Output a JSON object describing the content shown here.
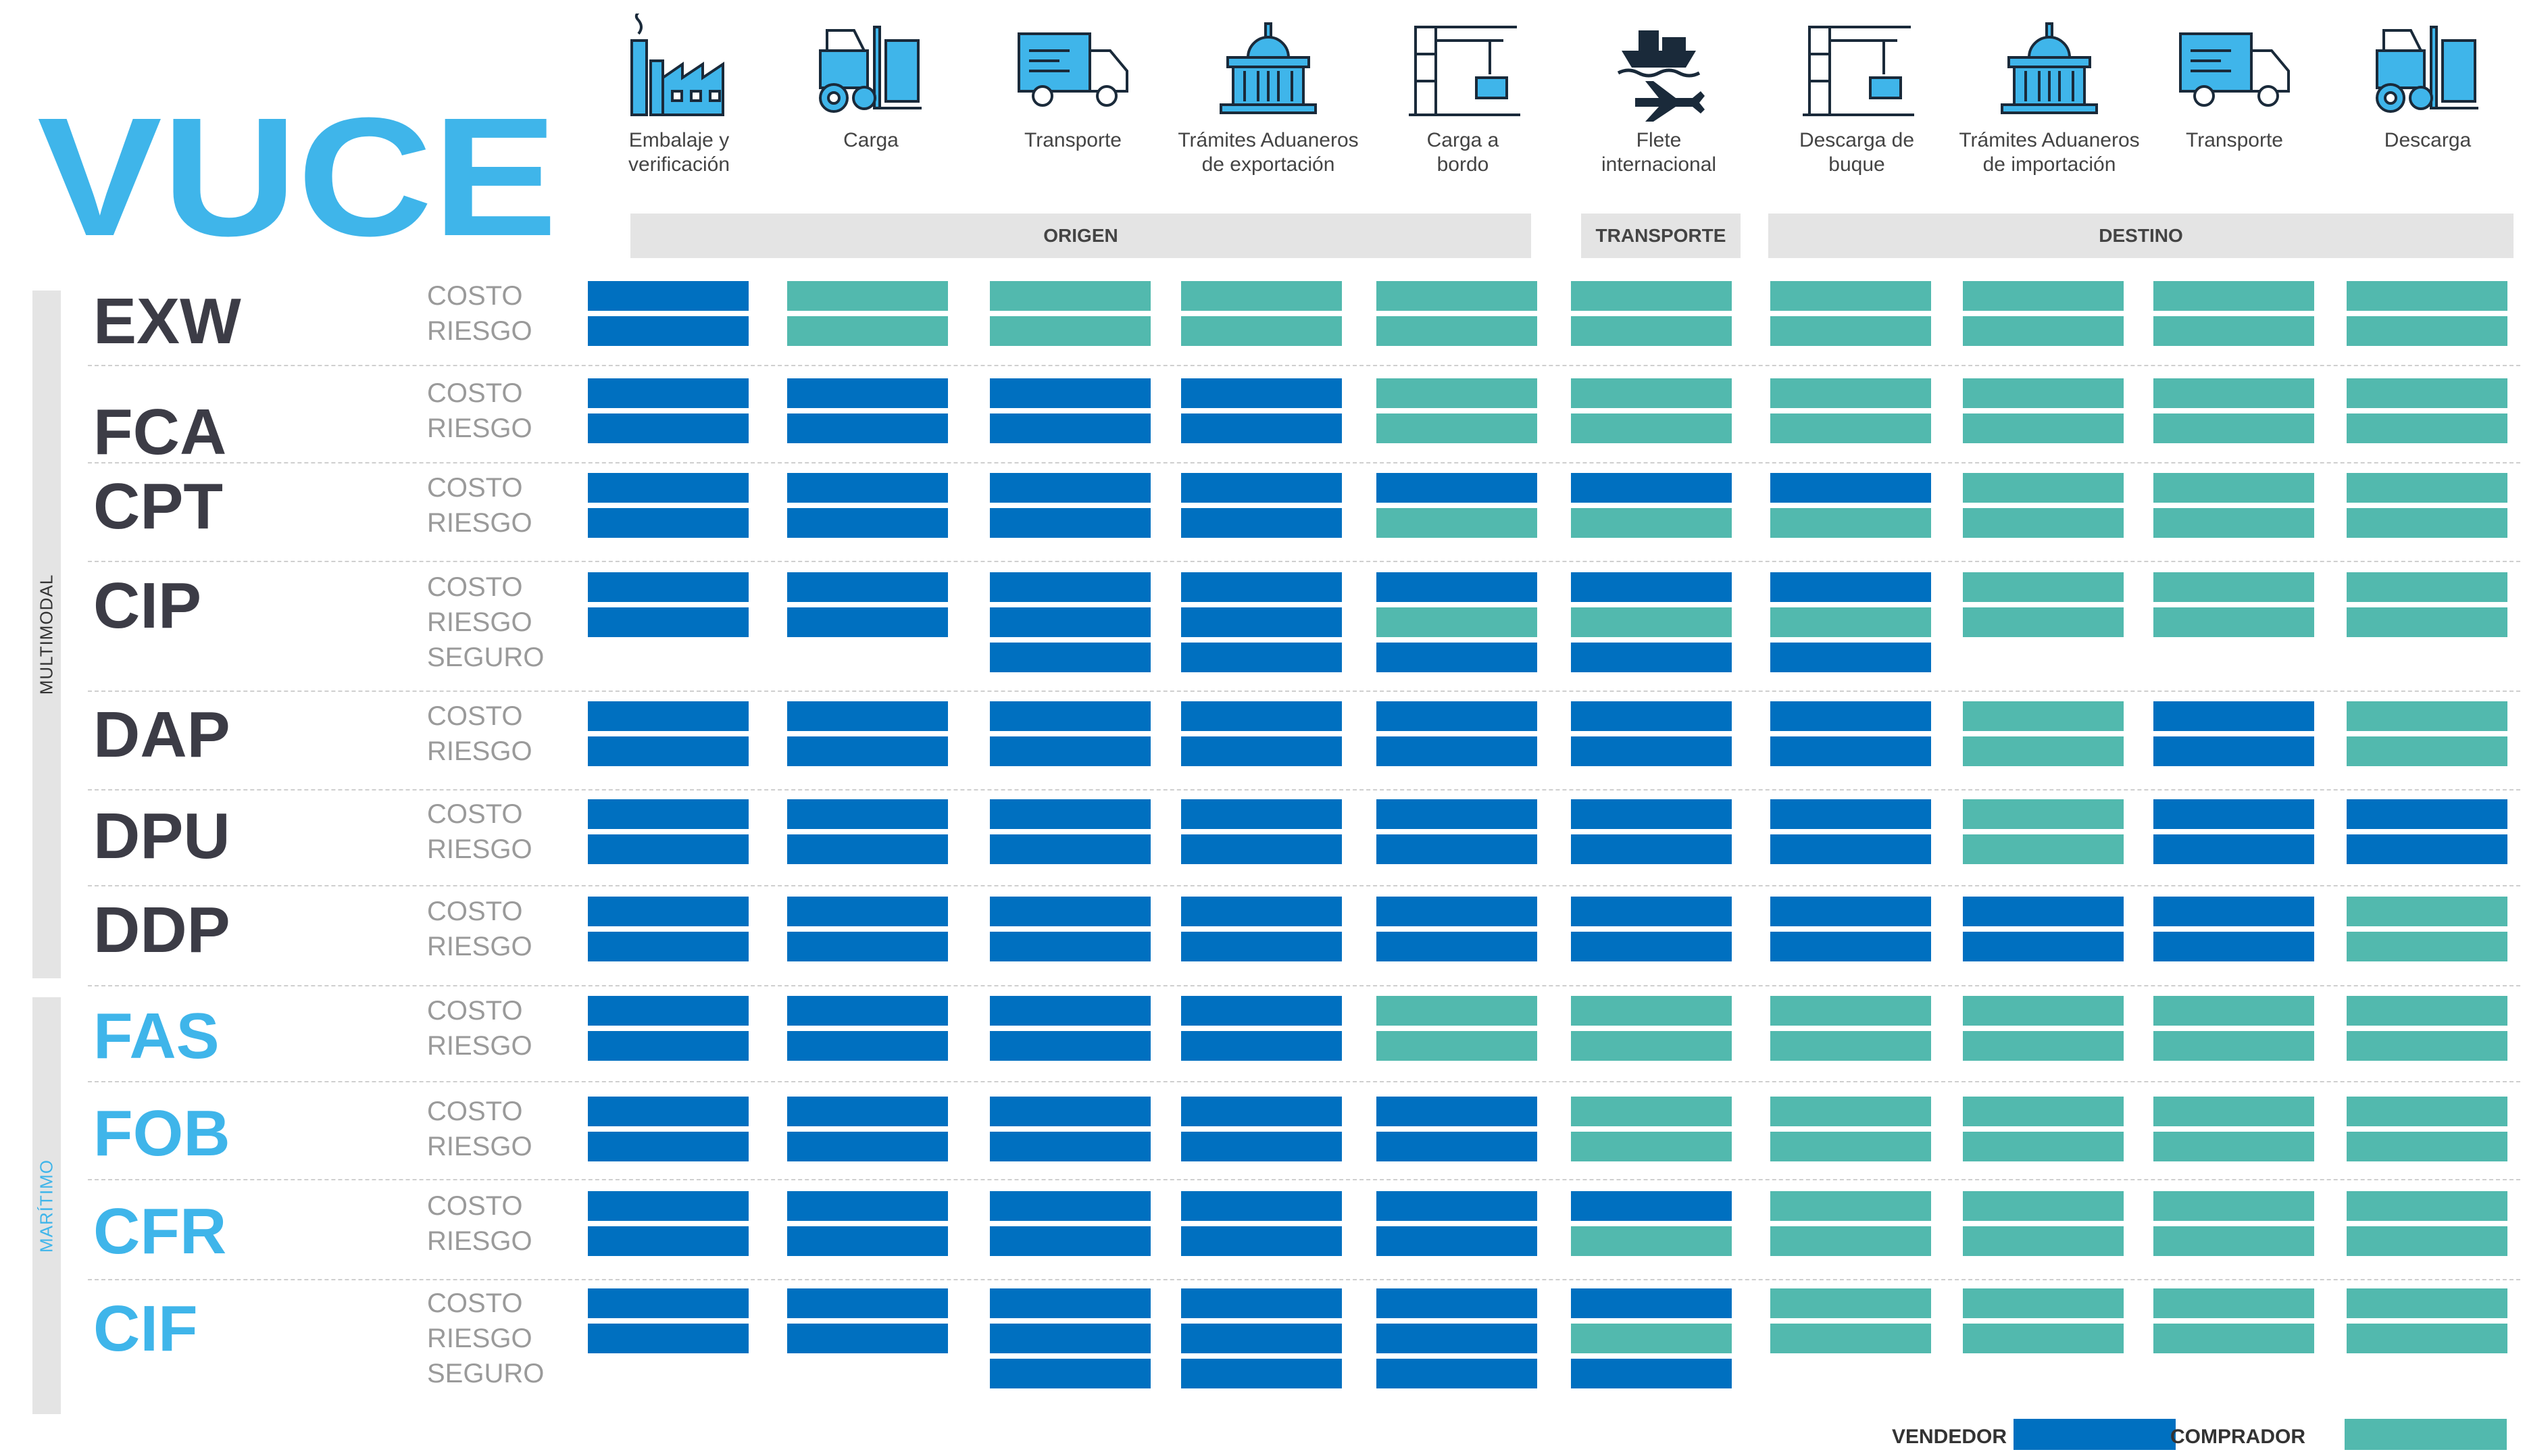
{
  "logo_text": "VUCE",
  "colors": {
    "vendedor": "#0070c0",
    "comprador": "#52b9ae",
    "logo": "#3fb5ea"
  },
  "steps": [
    {
      "icon": "factory-icon",
      "label": "Embalaje y\nverificación"
    },
    {
      "icon": "forklift-icon",
      "label": "Carga"
    },
    {
      "icon": "truck-icon",
      "label": "Transporte"
    },
    {
      "icon": "customs-building-icon",
      "label": "Trámites Aduaneros\nde exportación"
    },
    {
      "icon": "port-crane-icon",
      "label": "Carga a\nbordo"
    },
    {
      "icon": "ship-plane-icon",
      "label": "Flete\ninternacional"
    },
    {
      "icon": "port-crane-icon",
      "label": "Descarga de\nbuque"
    },
    {
      "icon": "customs-building-icon",
      "label": "Trámites Aduaneros\nde importación"
    },
    {
      "icon": "truck-icon",
      "label": "Transporte"
    },
    {
      "icon": "forklift-icon",
      "label": "Descarga"
    }
  ],
  "groups": [
    "ORIGEN",
    "TRANSPORTE",
    "DESTINO"
  ],
  "categories": [
    "MULTIMODAL",
    "MARÍTIMO"
  ],
  "row_labels": {
    "costo": "COSTO",
    "riesgo": "RIESGO",
    "seguro": "SEGURO"
  },
  "legend": {
    "vendedor": "VENDEDOR",
    "comprador": "COMPRADOR"
  },
  "terms": [
    {
      "code": "EXW",
      "category": "MULTIMODAL",
      "rows": [
        {
          "label": "COSTO",
          "cells": "VCCCCCCCCC"
        },
        {
          "label": "RIESGO",
          "cells": "VCCCCCCCCC"
        }
      ]
    },
    {
      "code": "FCA",
      "category": "MULTIMODAL",
      "rows": [
        {
          "label": "COSTO",
          "cells": "VVVVCCCCCC"
        },
        {
          "label": "RIESGO",
          "cells": "VVVVCCCCCC"
        }
      ]
    },
    {
      "code": "CPT",
      "category": "MULTIMODAL",
      "rows": [
        {
          "label": "COSTO",
          "cells": "VVVVVVVCCC"
        },
        {
          "label": "RIESGO",
          "cells": "VVVVCCCCCC"
        }
      ]
    },
    {
      "code": "CIP",
      "category": "MULTIMODAL",
      "rows": [
        {
          "label": "COSTO",
          "cells": "VVVVVVVCCC"
        },
        {
          "label": "RIESGO",
          "cells": "VVVVCCCCCC"
        },
        {
          "label": "SEGURO",
          "cells": "--VVVVV---"
        }
      ]
    },
    {
      "code": "DAP",
      "category": "MULTIMODAL",
      "rows": [
        {
          "label": "COSTO",
          "cells": "VVVVVVVCVC"
        },
        {
          "label": "RIESGO",
          "cells": "VVVVVVVCVC"
        }
      ]
    },
    {
      "code": "DPU",
      "category": "MULTIMODAL",
      "rows": [
        {
          "label": "COSTO",
          "cells": "VVVVVVVCVV"
        },
        {
          "label": "RIESGO",
          "cells": "VVVVVVVCVV"
        }
      ]
    },
    {
      "code": "DDP",
      "category": "MULTIMODAL",
      "rows": [
        {
          "label": "COSTO",
          "cells": "VVVVVVVVVC"
        },
        {
          "label": "RIESGO",
          "cells": "VVVVVVVVVC"
        }
      ]
    },
    {
      "code": "FAS",
      "category": "MARÍTIMO",
      "rows": [
        {
          "label": "COSTO",
          "cells": "VVVVCCCCCC"
        },
        {
          "label": "RIESGO",
          "cells": "VVVVCCCCCC"
        }
      ]
    },
    {
      "code": "FOB",
      "category": "MARÍTIMO",
      "rows": [
        {
          "label": "COSTO",
          "cells": "VVVVVCCCCC"
        },
        {
          "label": "RIESGO",
          "cells": "VVVVVCCCCC"
        }
      ]
    },
    {
      "code": "CFR",
      "category": "MARÍTIMO",
      "rows": [
        {
          "label": "COSTO",
          "cells": "VVVVVVCCCC"
        },
        {
          "label": "RIESGO",
          "cells": "VVVVVCCCCC"
        }
      ]
    },
    {
      "code": "CIF",
      "category": "MARÍTIMO",
      "rows": [
        {
          "label": "COSTO",
          "cells": "VVVVVVCCCC"
        },
        {
          "label": "RIESGO",
          "cells": "VVVVVCCCCC"
        },
        {
          "label": "SEGURO",
          "cells": "--VVVV----"
        }
      ]
    }
  ]
}
